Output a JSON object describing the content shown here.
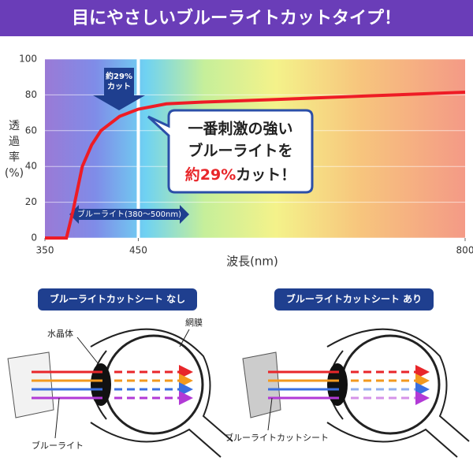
{
  "header": {
    "title": "目にやさしいブルーライトカットタイプ！"
  },
  "chart_data": {
    "type": "line",
    "color": "#ee1c25",
    "x": [
      350,
      373,
      380,
      390,
      400,
      410,
      430,
      450,
      480,
      520,
      600,
      700,
      800
    ],
    "values": [
      0,
      0,
      15,
      40,
      52,
      60,
      68,
      72,
      75,
      76,
      77.5,
      79.5,
      81.5
    ],
    "xlim": [
      350,
      800
    ],
    "xticks": [
      350,
      450,
      800
    ],
    "ylim": [
      0,
      100
    ],
    "yticks": [
      0,
      20,
      40,
      60,
      80,
      100
    ],
    "grid": true,
    "xlabel": "波長(nm)",
    "ylabel": [
      "透",
      "過",
      "率",
      "(%)"
    ],
    "cut_label": [
      "約29%",
      "カット"
    ],
    "band_label": "ブルーライト(380〜500nm)",
    "callout": {
      "line1": "一番刺激の強い",
      "line2": "ブルーライトを",
      "highlight": "約29%",
      "tail": "カット！"
    }
  },
  "panels": [
    {
      "title": "ブルーライトカットシート なし",
      "lens": "水晶体",
      "retina": "網膜",
      "light": "ブルーライト"
    },
    {
      "title": "ブルーライトカットシート あり",
      "sheet": "ブルーライトカットシート"
    }
  ]
}
